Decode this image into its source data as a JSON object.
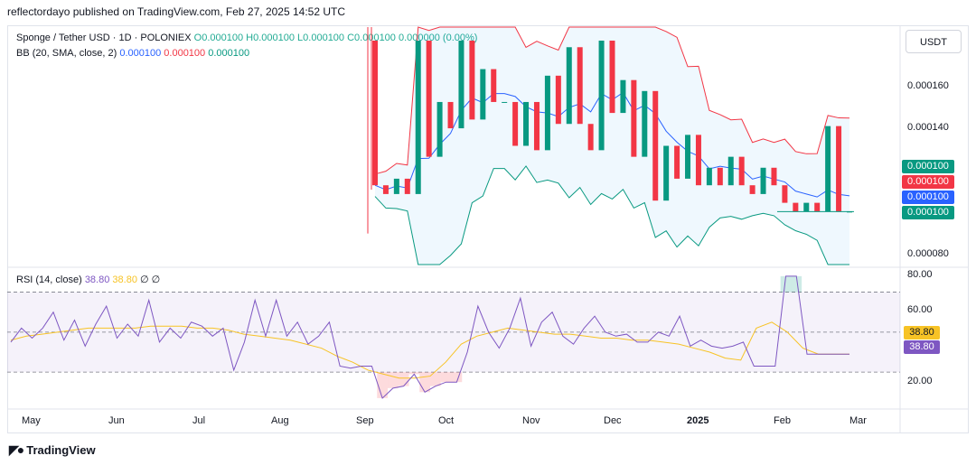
{
  "header": {
    "publisher": "reflectordayo published on TradingView.com, Feb 27, 2025 14:52 UTC"
  },
  "legend": {
    "symbol": "Sponge / Tether USD · 1D · POLONIEX",
    "ohlc": "O0.000100 H0.000100 L0.000100 C0.000100 0.000000 (0.00%)",
    "bb_label": "BB (20, SMA, close, 2)",
    "bb_mid": "0.000100",
    "bb_upper": "0.000100",
    "bb_lower": "0.000100",
    "rsi_label": "RSI (14, close)",
    "rsi_value": "38.80",
    "rsi_ma": "38.80",
    "rsi_extra": "∅ ∅"
  },
  "currency": "USDT",
  "colors": {
    "up": "#089981",
    "down": "#f23645",
    "bb_mid": "#2962ff",
    "bb_upper": "#f23645",
    "bb_lower": "#089981",
    "rsi": "#7e57c2",
    "rsi_ma": "#f7c325"
  },
  "footer": {
    "brand": "TradingView",
    "icon": "tradingview-logo-icon"
  },
  "chart_data": [
    {
      "type": "candlestick",
      "title": "Sponge / Tether USD · 1D · POLONIEX",
      "y_ticks": [
        8e-05,
        0.00014,
        0.00016
      ],
      "y_tick_labels": [
        "0.000080",
        "0.000140",
        "0.000160"
      ],
      "ylim": [
        7.5e-05,
        0.000185
      ],
      "x_ticks": [
        "May",
        "Jun",
        "Jul",
        "Aug",
        "Sep",
        "Oct",
        "Nov",
        "Dec",
        "2025",
        "Feb",
        "Mar"
      ],
      "price_labels": [
        {
          "value": "0.000100",
          "color": "#089981"
        },
        {
          "value": "0.000100",
          "color": "#f23645"
        },
        {
          "value": "0.000100",
          "color": "#2962ff"
        },
        {
          "value": "0.000100",
          "color": "#089981"
        }
      ],
      "candles_approx": [
        [
          0.000178,
          0.000112
        ],
        [
          0.000112,
          0.000108
        ],
        [
          0.000108,
          0.000115
        ],
        [
          0.000115,
          0.000108
        ],
        [
          0.000108,
          0.000178
        ],
        [
          0.000178,
          0.000125
        ],
        [
          0.000125,
          0.00015
        ],
        [
          0.00015,
          0.000138
        ],
        [
          0.000138,
          0.000178
        ],
        [
          0.000178,
          0.000142
        ],
        [
          0.000142,
          0.000165
        ],
        [
          0.000165,
          0.00015
        ],
        [
          0.00015,
          0.00015
        ],
        [
          0.00015,
          0.00013
        ],
        [
          0.00013,
          0.00015
        ],
        [
          0.00015,
          0.000128
        ],
        [
          0.000128,
          0.000162
        ],
        [
          0.000162,
          0.00014
        ],
        [
          0.00014,
          0.000175
        ],
        [
          0.000175,
          0.00014
        ],
        [
          0.00014,
          0.000128
        ],
        [
          0.000128,
          0.000178
        ],
        [
          0.000178,
          0.000145
        ],
        [
          0.000145,
          0.00016
        ],
        [
          0.00016,
          0.000125
        ],
        [
          0.000125,
          0.000155
        ],
        [
          0.000155,
          0.000105
        ],
        [
          0.000105,
          0.00013
        ],
        [
          0.00013,
          0.000115
        ],
        [
          0.000115,
          0.000135
        ],
        [
          0.000135,
          0.000112
        ],
        [
          0.000112,
          0.00012
        ],
        [
          0.00012,
          0.000112
        ],
        [
          0.000112,
          0.000125
        ],
        [
          0.000125,
          0.000112
        ],
        [
          0.000112,
          0.000108
        ],
        [
          0.000108,
          0.00012
        ],
        [
          0.00012,
          0.000112
        ],
        [
          0.000112,
          0.000104
        ],
        [
          0.000104,
          0.0001
        ],
        [
          0.0001,
          0.000104
        ],
        [
          0.000104,
          0.0001
        ],
        [
          0.0001,
          0.000139
        ],
        [
          0.000139,
          0.0001
        ],
        [
          0.0001,
          0.0001
        ]
      ]
    },
    {
      "type": "line",
      "title": "RSI (14, close)",
      "y_ticks": [
        20,
        40,
        60,
        80
      ],
      "y_tick_labels": [
        "20.00",
        "",
        "60.00",
        "80.00"
      ],
      "ylim": [
        12,
        82
      ],
      "bands": [
        30,
        50,
        70
      ],
      "value_labels": [
        {
          "value": "38.80",
          "color": "#f7c325"
        },
        {
          "value": "38.80",
          "color": "#7e57c2"
        }
      ],
      "rsi_approx": [
        45,
        52,
        47,
        52,
        60,
        46,
        56,
        43,
        54,
        63,
        47,
        54,
        48,
        66,
        45,
        52,
        47,
        55,
        53,
        48,
        52,
        31,
        45,
        66,
        48,
        66,
        48,
        55,
        44,
        48,
        55,
        33,
        32,
        33,
        33,
        17,
        22,
        23,
        29,
        20,
        23,
        25,
        25,
        40,
        63,
        50,
        42,
        52,
        67,
        43,
        55,
        60,
        48,
        44,
        52,
        58,
        50,
        48,
        49,
        45,
        45,
        50,
        48,
        58,
        43,
        46,
        43,
        42,
        43,
        45,
        33,
        33,
        33,
        78,
        78,
        39,
        39,
        39,
        39,
        39
      ],
      "rsi_ma_approx": [
        46,
        48,
        49,
        50,
        51,
        52,
        52,
        52,
        52,
        53,
        53,
        53,
        52,
        52,
        51,
        49,
        48,
        47,
        46,
        44,
        42,
        38,
        35,
        31,
        29,
        27,
        27,
        28,
        35,
        44,
        48,
        50,
        52,
        51,
        50,
        49,
        49,
        48,
        47,
        47,
        46,
        46,
        45,
        44,
        42,
        40,
        37,
        36,
        52,
        55,
        50,
        42,
        39,
        39,
        39
      ]
    }
  ]
}
